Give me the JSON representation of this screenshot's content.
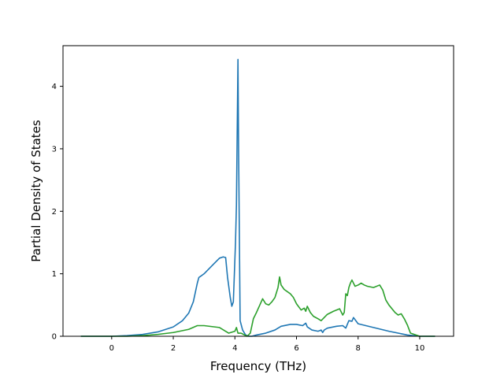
{
  "chart_data": {
    "type": "line",
    "title": "",
    "xlabel": "Frequency (THz)",
    "ylabel": "Partial Density of States",
    "xlim": [
      -1.58,
      11.1
    ],
    "ylim": [
      0,
      4.65
    ],
    "xticks": [
      0,
      2,
      4,
      6,
      8,
      10
    ],
    "yticks": [
      0,
      1,
      2,
      3,
      4
    ],
    "grid": false,
    "legend": "none",
    "series": [
      {
        "color": "#1f77b4",
        "x": [
          -1.0,
          0.0,
          0.5,
          1.0,
          1.5,
          2.0,
          2.3,
          2.5,
          2.65,
          2.78,
          2.83,
          3.0,
          3.3,
          3.5,
          3.62,
          3.7,
          3.76,
          3.85,
          3.9,
          3.95,
          4.02,
          4.05,
          4.08,
          4.1,
          4.12,
          4.17,
          4.25,
          4.35,
          4.45,
          4.55,
          4.7,
          5.0,
          5.3,
          5.5,
          5.8,
          6.0,
          6.2,
          6.3,
          6.35,
          6.5,
          6.7,
          6.8,
          6.85,
          6.9,
          7.0,
          7.3,
          7.5,
          7.6,
          7.7,
          7.8,
          7.85,
          8.0,
          8.5,
          9.0,
          9.4,
          9.6,
          10.0,
          10.5
        ],
        "y": [
          0,
          0,
          0.01,
          0.03,
          0.07,
          0.15,
          0.25,
          0.37,
          0.55,
          0.85,
          0.94,
          1.0,
          1.15,
          1.25,
          1.27,
          1.26,
          0.95,
          0.62,
          0.48,
          0.55,
          1.5,
          2.1,
          3.5,
          4.43,
          3.0,
          0.25,
          0.1,
          0.02,
          0.0,
          0.0,
          0.02,
          0.05,
          0.1,
          0.16,
          0.19,
          0.19,
          0.17,
          0.21,
          0.15,
          0.1,
          0.08,
          0.1,
          0.06,
          0.1,
          0.13,
          0.16,
          0.17,
          0.13,
          0.25,
          0.24,
          0.3,
          0.2,
          0.14,
          0.08,
          0.04,
          0.02,
          0.0,
          0.0
        ]
      },
      {
        "color": "#2ca02c",
        "x": [
          -1.0,
          0.0,
          0.5,
          1.0,
          1.5,
          2.0,
          2.5,
          2.78,
          3.0,
          3.5,
          3.8,
          4.0,
          4.05,
          4.1,
          4.2,
          4.4,
          4.5,
          4.6,
          4.7,
          4.9,
          5.0,
          5.1,
          5.2,
          5.3,
          5.4,
          5.45,
          5.5,
          5.6,
          5.8,
          5.9,
          6.0,
          6.15,
          6.25,
          6.3,
          6.35,
          6.45,
          6.55,
          6.7,
          6.8,
          6.9,
          7.0,
          7.2,
          7.4,
          7.5,
          7.55,
          7.6,
          7.65,
          7.7,
          7.75,
          7.8,
          7.85,
          7.9,
          8.0,
          8.1,
          8.2,
          8.3,
          8.5,
          8.7,
          8.8,
          8.9,
          9.0,
          9.2,
          9.3,
          9.4,
          9.5,
          9.6,
          9.7,
          10.0,
          10.5
        ],
        "y": [
          0,
          0,
          0,
          0.01,
          0.03,
          0.06,
          0.11,
          0.17,
          0.17,
          0.14,
          0.05,
          0.08,
          0.14,
          0.05,
          0.05,
          0.0,
          0.05,
          0.28,
          0.38,
          0.6,
          0.52,
          0.5,
          0.55,
          0.62,
          0.78,
          0.95,
          0.82,
          0.75,
          0.68,
          0.62,
          0.52,
          0.42,
          0.45,
          0.4,
          0.48,
          0.38,
          0.32,
          0.28,
          0.25,
          0.3,
          0.35,
          0.4,
          0.44,
          0.34,
          0.38,
          0.68,
          0.65,
          0.78,
          0.85,
          0.9,
          0.85,
          0.8,
          0.82,
          0.85,
          0.82,
          0.8,
          0.78,
          0.82,
          0.74,
          0.58,
          0.5,
          0.38,
          0.34,
          0.36,
          0.28,
          0.18,
          0.05,
          0.0,
          0.0
        ]
      }
    ]
  }
}
